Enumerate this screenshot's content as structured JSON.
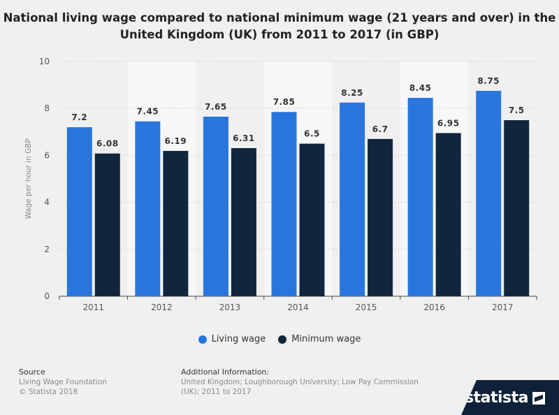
{
  "title": "National living wage compared to national minimum wage (21 years and over) in the United Kingdom (UK) from 2011 to 2017 (in GBP)",
  "chart_data": {
    "type": "bar",
    "title": "National living wage compared to national minimum wage (21 years and over) in the United Kingdom (UK) from 2011 to 2017 (in GBP)",
    "xlabel": "",
    "ylabel": "Wage per hour in GBP",
    "ylim": [
      0,
      10
    ],
    "yticks": [
      0,
      2,
      4,
      6,
      8,
      10
    ],
    "categories": [
      "2011",
      "2012",
      "2013",
      "2014",
      "2015",
      "2016",
      "2017"
    ],
    "series": [
      {
        "name": "Living wage",
        "color": "#2876dd",
        "values": [
          7.2,
          7.45,
          7.65,
          7.85,
          8.25,
          8.45,
          8.75
        ]
      },
      {
        "name": "Minimum wage",
        "color": "#10263f",
        "values": [
          6.08,
          6.19,
          6.31,
          6.5,
          6.7,
          6.95,
          7.5
        ]
      }
    ],
    "grid": true,
    "legend": "bottom-center"
  },
  "footer": {
    "source_head": "Source",
    "source_line1": "Living Wage Foundation",
    "source_line2": "© Statista 2018",
    "info_head": "Additional Information:",
    "info_line1": "United Kingdom; Loughborough University; Low Pay Commission",
    "info_line2": "(UK); 2011 to 2017"
  },
  "brand": {
    "name": "statista",
    "icon": "statista-logo-icon"
  }
}
